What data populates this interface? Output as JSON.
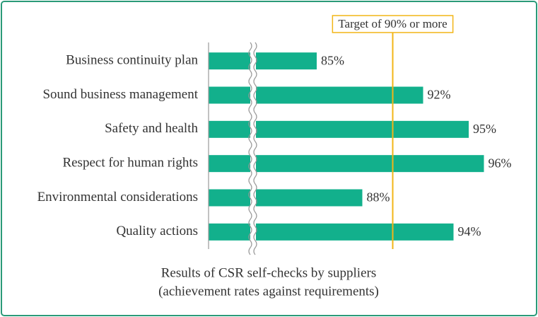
{
  "chart_data": {
    "type": "bar",
    "orientation": "horizontal",
    "title": [
      "Results of CSR self-checks by suppliers",
      "(achievement rates against requirements)"
    ],
    "categories": [
      "Business continuity plan",
      "Sound business management",
      "Safety and health",
      "Respect for human rights",
      "Environmental considerations",
      "Quality actions"
    ],
    "values": [
      85,
      92,
      95,
      96,
      88,
      94
    ],
    "value_labels": [
      "85%",
      "92%",
      "95%",
      "96%",
      "88%",
      "94%"
    ],
    "color": "#12b08c",
    "xlim": [
      81,
      97
    ],
    "axis_break": true,
    "target": {
      "value": 90,
      "label": "Target of 90% or more",
      "color": "#f2b517"
    }
  }
}
